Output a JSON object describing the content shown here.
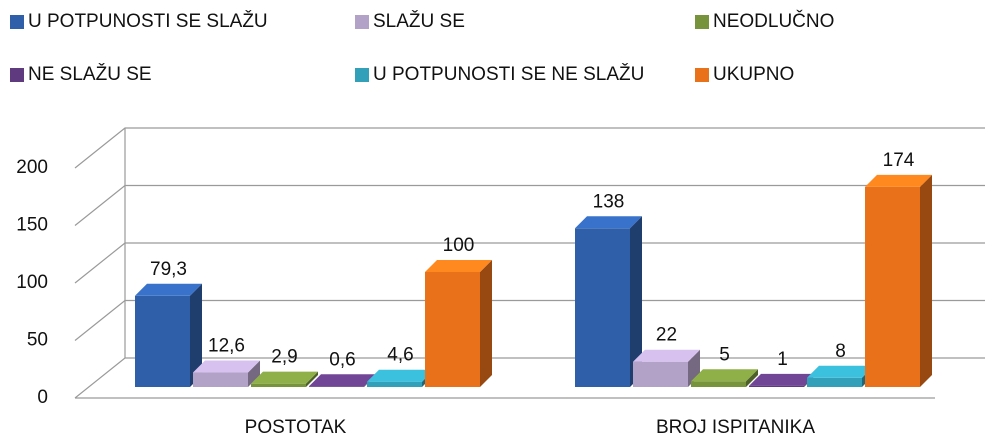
{
  "chart_data": {
    "type": "bar3d",
    "categories": [
      "POSTOTAK",
      "BROJ ISPITANIKA"
    ],
    "series": [
      {
        "name": "U POTPUNOSTI SE SLAŽU",
        "color": "#2f5fa8",
        "values": [
          79.3,
          138
        ],
        "value_labels": [
          "79,3",
          "138"
        ]
      },
      {
        "name": "SLAŽU SE",
        "color": "#b3a2c7",
        "values": [
          12.6,
          22
        ],
        "value_labels": [
          "12,6",
          "22"
        ]
      },
      {
        "name": "NEODLUČNO",
        "color": "#77933c",
        "values": [
          2.9,
          5
        ],
        "value_labels": [
          "2,9",
          "5"
        ]
      },
      {
        "name": "NE SLAŽU SE",
        "color": "#5f3a7e",
        "values": [
          0.6,
          1
        ],
        "value_labels": [
          "0,6",
          "1"
        ]
      },
      {
        "name": "U POTPUNOSTI SE NE SLAŽU",
        "color": "#31a0b8",
        "values": [
          4.6,
          8
        ],
        "value_labels": [
          "4,6",
          "8"
        ]
      },
      {
        "name": "UKUPNO",
        "color": "#e8711a",
        "values": [
          100,
          174
        ],
        "value_labels": [
          "100",
          "174"
        ]
      }
    ],
    "ylim": [
      0,
      200
    ],
    "yticks": [
      0,
      50,
      100,
      150,
      200
    ],
    "grid": true
  }
}
